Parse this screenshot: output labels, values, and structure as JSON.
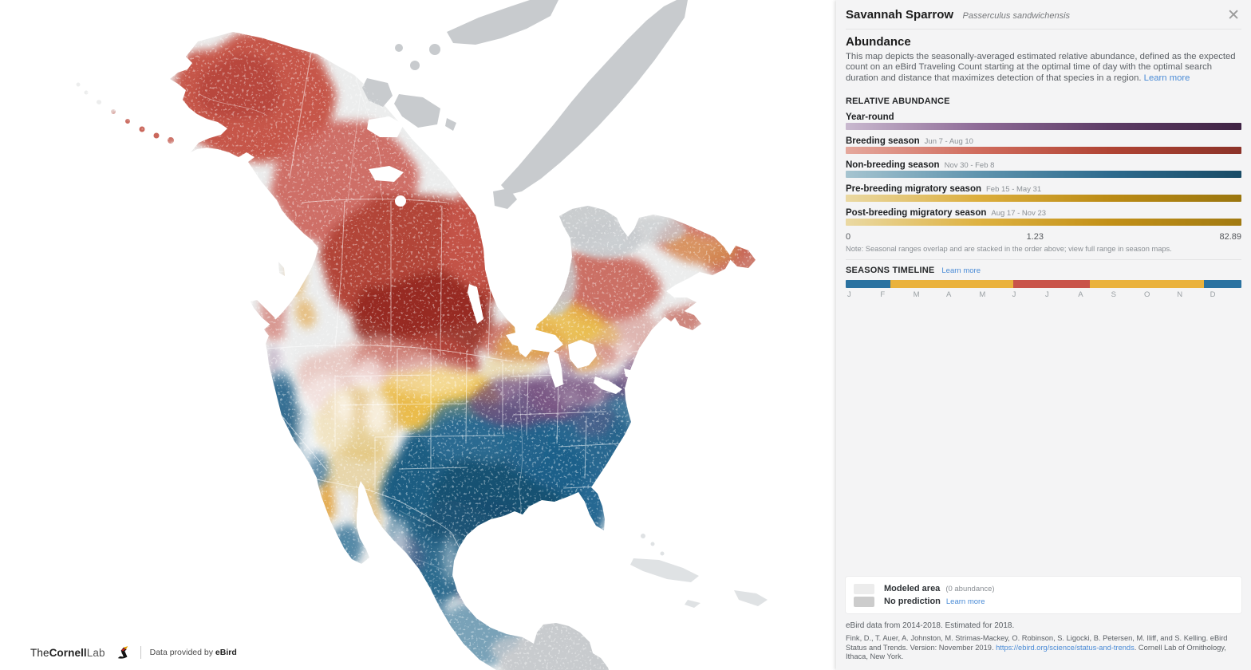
{
  "panel": {
    "species": {
      "common": "Savannah Sparrow",
      "scientific": "Passerculus sandwichensis"
    },
    "icons": {
      "close": "✕"
    },
    "heading": "Abundance",
    "description": "This map depicts the seasonally-averaged estimated relative abundance, defined as the expected count on an eBird Traveling Count starting at the optimal time of day with the optimal search duration and distance that maximizes detection of that species in a region.",
    "learn_more": "Learn more",
    "relative_abundance": {
      "title": "RELATIVE ABUNDANCE",
      "seasons": [
        {
          "name": "Year-round",
          "dates": "",
          "gradient": [
            "#c9b9cf",
            "#8e6b97",
            "#5d3c66",
            "#3f2343"
          ]
        },
        {
          "name": "Breeding season",
          "dates": "Jun 7 - Aug 10",
          "gradient": [
            "#e5a89d",
            "#d06c5d",
            "#b04434",
            "#8c3329"
          ]
        },
        {
          "name": "Non-breeding season",
          "dates": "Nov 30 - Feb 8",
          "gradient": [
            "#a6c4d0",
            "#5f94ae",
            "#2e6b8e",
            "#184b66"
          ]
        },
        {
          "name": "Pre-breeding migratory season",
          "dates": "Feb 15 - May 31",
          "gradient": [
            "#ead9a3",
            "#dcae3d",
            "#bb8b15",
            "#9a760f"
          ]
        },
        {
          "name": "Post-breeding migratory season",
          "dates": "Aug 17 - Nov 23",
          "gradient": [
            "#ead9a3",
            "#deb242",
            "#c29018",
            "#a17a12"
          ]
        }
      ],
      "scale": {
        "min": "0",
        "mid": "1.23",
        "max": "82.89"
      },
      "note": "Note: Seasonal ranges overlap and are stacked in the order above; view full range in season maps."
    },
    "seasons_timeline": {
      "title": "SEASONS TIMELINE",
      "learn_more": "Learn more",
      "months": [
        "J",
        "F",
        "M",
        "A",
        "M",
        "J",
        "J",
        "A",
        "S",
        "O",
        "N",
        "D"
      ],
      "segments": [
        {
          "season": "non-breeding",
          "color": "#2a72a0",
          "pct": 11.3
        },
        {
          "season": "pre-breeding-migration",
          "color": "#eab23c",
          "pct": 31.1
        },
        {
          "season": "breeding",
          "color": "#c9544a",
          "pct": 19.3
        },
        {
          "season": "post-breeding-migration",
          "color": "#eab23c",
          "pct": 28.9
        },
        {
          "season": "non-breeding",
          "color": "#2a72a0",
          "pct": 9.4
        }
      ]
    },
    "legend": {
      "items": [
        {
          "label": "Modeled area",
          "detail": "(0 abundance)",
          "swatch": "#ececec"
        },
        {
          "label": "No prediction",
          "detail": "Learn more",
          "swatch": "#cccccc"
        }
      ]
    },
    "footer": {
      "data_line": "eBird data from 2014-2018. Estimated for 2018.",
      "citation_pre": "Fink, D., T. Auer, A. Johnston, M. Strimas-Mackey, O. Robinson, S. Ligocki, B. Petersen, M. Iliff, and S. Kelling. eBird Status and Trends. Version: November 2019. ",
      "citation_link": "https://ebird.org/science/status-and-trends",
      "citation_post": ". Cornell Lab of Ornithology, Ithaca, New York."
    }
  },
  "map_footer": {
    "logo": {
      "part1": "The",
      "part2": "Cornell",
      "part3": "Lab"
    },
    "credit_pre": "Data provided by ",
    "credit_bold": "eBird"
  },
  "map": {
    "water_color": "#ffffff",
    "palette": {
      "modeled_area": "#eceded",
      "no_prediction": "#c8cbce",
      "breeding_red_deep": "#952d21",
      "breeding_red": "#c6564a",
      "migration_yellow": "#e9b844",
      "nonbreeding_blue_deep": "#1a4f72",
      "nonbreeding_blue": "#266690",
      "year_round_purple": "#6f4a7a",
      "border_lines": "#ffffff"
    },
    "regions": [
      {
        "name": "Breeding season",
        "color": "#c6564a"
      },
      {
        "name": "Non-breeding season",
        "color": "#266690"
      },
      {
        "name": "Migration seasons",
        "color": "#e9b844"
      },
      {
        "name": "Year-round",
        "color": "#6f4a7a"
      },
      {
        "name": "No prediction",
        "color": "#c8cbce"
      },
      {
        "name": "Modeled area (0 abundance)",
        "color": "#eceded"
      }
    ]
  }
}
